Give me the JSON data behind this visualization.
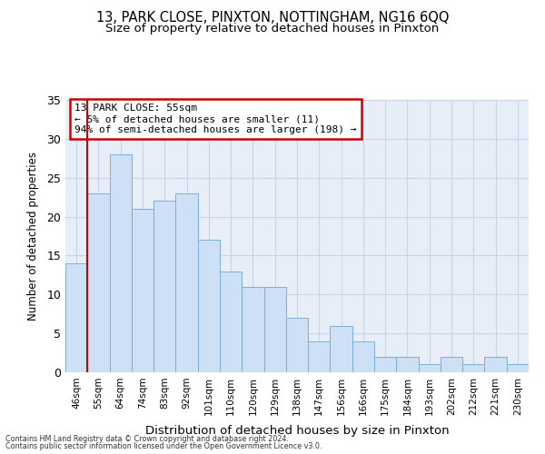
{
  "title1": "13, PARK CLOSE, PINXTON, NOTTINGHAM, NG16 6QQ",
  "title2": "Size of property relative to detached houses in Pinxton",
  "xlabel": "Distribution of detached houses by size in Pinxton",
  "ylabel": "Number of detached properties",
  "categories": [
    "46sqm",
    "55sqm",
    "64sqm",
    "74sqm",
    "83sqm",
    "92sqm",
    "101sqm",
    "110sqm",
    "120sqm",
    "129sqm",
    "138sqm",
    "147sqm",
    "156sqm",
    "166sqm",
    "175sqm",
    "184sqm",
    "193sqm",
    "202sqm",
    "212sqm",
    "221sqm",
    "230sqm"
  ],
  "values": [
    14,
    23,
    28,
    21,
    22,
    23,
    17,
    13,
    11,
    11,
    7,
    4,
    6,
    4,
    2,
    2,
    1,
    2,
    1,
    2,
    1
  ],
  "bar_color": "#cde0f5",
  "bar_edge_color": "#7bafd4",
  "highlight_index": 1,
  "highlight_line_color": "#cc0000",
  "ylim": [
    0,
    35
  ],
  "yticks": [
    0,
    5,
    10,
    15,
    20,
    25,
    30,
    35
  ],
  "annotation_title": "13 PARK CLOSE: 55sqm",
  "annotation_line1": "← 5% of detached houses are smaller (11)",
  "annotation_line2": "94% of semi-detached houses are larger (198) →",
  "annotation_box_color": "#cc0000",
  "footer1": "Contains HM Land Registry data © Crown copyright and database right 2024.",
  "footer2": "Contains public sector information licensed under the Open Government Licence v3.0.",
  "grid_color": "#c8d4e8",
  "bg_color": "#e8eef8"
}
